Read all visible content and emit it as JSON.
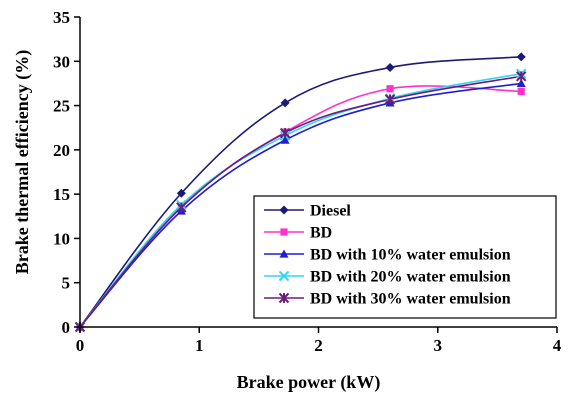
{
  "chart_data": {
    "type": "line",
    "xlabel": "Brake power (kW)",
    "ylabel": "Brake thermal efficiency (%)",
    "xlim": [
      0,
      4
    ],
    "ylim": [
      0,
      35
    ],
    "xticks": [
      "0",
      "1",
      "2",
      "3",
      "4"
    ],
    "yticks": [
      "0",
      "5",
      "10",
      "15",
      "20",
      "25",
      "30",
      "35"
    ],
    "grid": false,
    "legend_position": "bottom-right",
    "series": [
      {
        "name": "Diesel",
        "color": "#1a1a7a",
        "marker": "diamond",
        "x": [
          0,
          0.85,
          1.72,
          2.6,
          3.7
        ],
        "y": [
          0,
          15.1,
          25.3,
          29.3,
          30.5
        ]
      },
      {
        "name": "BD",
        "color": "#ff33cc",
        "marker": "square",
        "x": [
          0,
          0.85,
          1.72,
          2.6,
          3.7
        ],
        "y": [
          0,
          13.6,
          22.0,
          26.9,
          26.6
        ]
      },
      {
        "name": "BD with 10% water emulsion",
        "color": "#1f1fd1",
        "marker": "triangle",
        "x": [
          0,
          0.85,
          1.72,
          2.6,
          3.7
        ],
        "y": [
          0,
          13.1,
          21.1,
          25.3,
          27.5
        ]
      },
      {
        "name": "BD with 20% water emulsion",
        "color": "#33d6f0",
        "marker": "x",
        "x": [
          0,
          0.85,
          1.72,
          2.6,
          3.7
        ],
        "y": [
          0,
          13.8,
          21.6,
          25.8,
          28.6
        ]
      },
      {
        "name": "BD with 30% water emulsion",
        "color": "#6a1f7a",
        "marker": "star",
        "x": [
          0,
          0.85,
          1.72,
          2.6,
          3.7
        ],
        "y": [
          0,
          13.5,
          21.9,
          25.7,
          28.3
        ]
      }
    ]
  }
}
